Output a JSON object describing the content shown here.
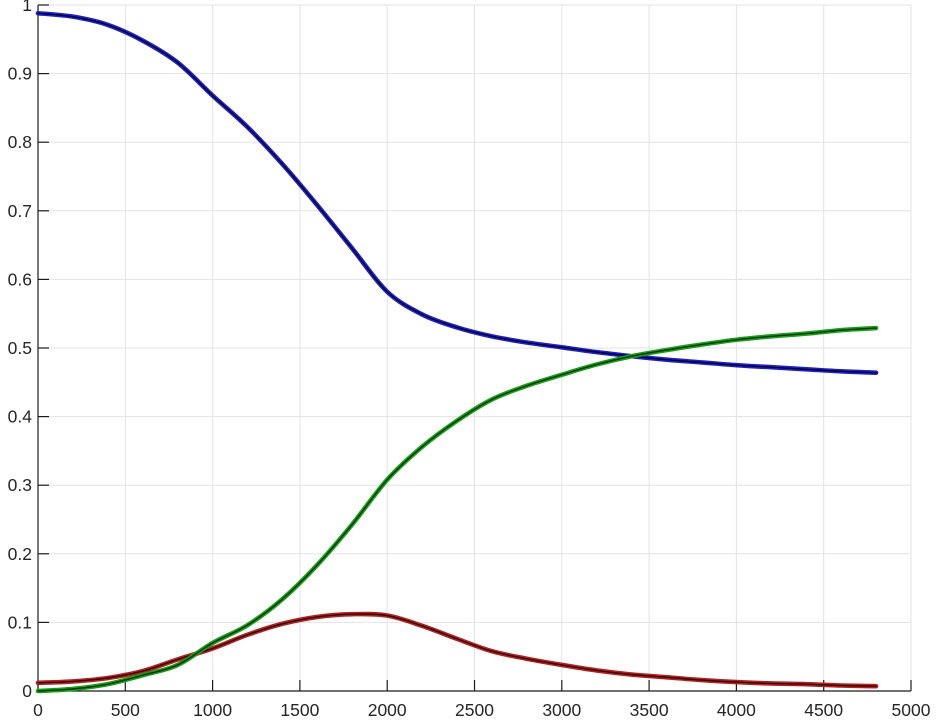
{
  "figure": {
    "background": "#ffffff",
    "grid_color": "#e3e3e3",
    "axis_color": "#1c1c1c",
    "tick_label_color": "#262626"
  },
  "chart_data": {
    "type": "line",
    "title": "",
    "xlabel": "",
    "ylabel": "",
    "xlim": [
      0,
      5000
    ],
    "ylim": [
      0,
      1
    ],
    "grid": true,
    "legend": "none",
    "x_ticks": [
      0,
      500,
      1000,
      1500,
      2000,
      2500,
      3000,
      3500,
      4000,
      4500,
      5000
    ],
    "x_tick_labels": [
      "0",
      "500",
      "1000",
      "1500",
      "2000",
      "2500",
      "3000",
      "3500",
      "4000",
      "4500",
      "5000"
    ],
    "y_ticks": [
      0,
      0.1,
      0.2,
      0.3,
      0.4,
      0.5,
      0.6,
      0.7,
      0.8,
      0.9,
      1
    ],
    "y_tick_labels": [
      "0",
      "0.1",
      "0.2",
      "0.3",
      "0.4",
      "0.5",
      "0.6",
      "0.7",
      "0.8",
      "0.9",
      "1"
    ],
    "x": [
      0,
      200,
      400,
      600,
      800,
      1000,
      1200,
      1400,
      1600,
      1800,
      2000,
      2200,
      2400,
      2600,
      2800,
      3000,
      3200,
      3400,
      3600,
      3800,
      4000,
      4200,
      4400,
      4600,
      4800
    ],
    "series": [
      {
        "name": "blue-curve",
        "color": "#2020c8",
        "core_color": "#000030",
        "values": [
          0.988,
          0.983,
          0.971,
          0.948,
          0.916,
          0.868,
          0.822,
          0.768,
          0.708,
          0.645,
          0.582,
          0.549,
          0.53,
          0.517,
          0.508,
          0.501,
          0.494,
          0.488,
          0.483,
          0.479,
          0.475,
          0.472,
          0.469,
          0.466,
          0.464
        ]
      },
      {
        "name": "red-curve",
        "color": "#b32020",
        "core_color": "#300404",
        "values": [
          0.012,
          0.014,
          0.019,
          0.029,
          0.046,
          0.062,
          0.082,
          0.098,
          0.108,
          0.112,
          0.11,
          0.095,
          0.076,
          0.058,
          0.047,
          0.038,
          0.03,
          0.024,
          0.02,
          0.016,
          0.013,
          0.011,
          0.01,
          0.008,
          0.007
        ]
      },
      {
        "name": "green-curve",
        "color": "#17a017",
        "core_color": "#003300",
        "values": [
          0.0,
          0.003,
          0.01,
          0.023,
          0.038,
          0.07,
          0.096,
          0.134,
          0.184,
          0.243,
          0.308,
          0.356,
          0.394,
          0.425,
          0.445,
          0.461,
          0.476,
          0.488,
          0.497,
          0.505,
          0.512,
          0.517,
          0.521,
          0.526,
          0.529
        ]
      }
    ]
  }
}
